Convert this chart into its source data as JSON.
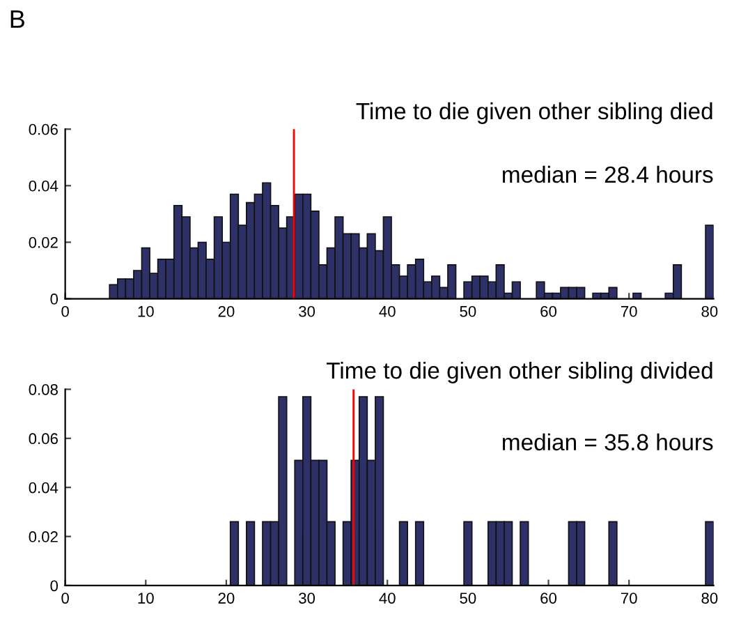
{
  "chart_data": [
    {
      "type": "histogram",
      "title": "Time to die given other sibling died",
      "color": "#2e3168",
      "bins": [
        0.5,
        1.5,
        2.5,
        3.5,
        4.5,
        5.5,
        6.5,
        7.5,
        8.5,
        9.5,
        10.5,
        11.5,
        12.5,
        13.5,
        14.5,
        15.5,
        16.5,
        17.5,
        18.5,
        19.5,
        20.5,
        21.5,
        22.5,
        23.5,
        24.5,
        25.5,
        26.5,
        27.5,
        28.5,
        29.5,
        30.5,
        31.5,
        32.5,
        33.5,
        34.5,
        35.5,
        36.5,
        37.5,
        38.5,
        39.5,
        40.5,
        41.5,
        42.5,
        43.5,
        44.5,
        45.5,
        46.5,
        47.5,
        48.5,
        49.5,
        50.5,
        51.5,
        52.5,
        53.5,
        54.5,
        55.5,
        56.5,
        57.5,
        58.5,
        59.5,
        60.5,
        61.5,
        62.5,
        63.5,
        64.5,
        65.5,
        66.5,
        67.5,
        68.5,
        69.5,
        70.5,
        71.5,
        72.5,
        73.5,
        74.5,
        75.5,
        76.5,
        77.5,
        78.5,
        79.5,
        80.5
      ],
      "values": [
        0,
        0,
        0,
        0,
        0,
        0.005,
        0.007,
        0.007,
        0.01,
        0.018,
        0.009,
        0.014,
        0.014,
        0.033,
        0.029,
        0.018,
        0.02,
        0.014,
        0.029,
        0.02,
        0.037,
        0.026,
        0.034,
        0.037,
        0.041,
        0.033,
        0.025,
        0.029,
        0.037,
        0.037,
        0.031,
        0.012,
        0.018,
        0.029,
        0.023,
        0.023,
        0.018,
        0.023,
        0.017,
        0.029,
        0.012,
        0.008,
        0.012,
        0.014,
        0.006,
        0.008,
        0.004,
        0.012,
        0,
        0.006,
        0.008,
        0.008,
        0.006,
        0.012,
        0.002,
        0.006,
        0,
        0,
        0.006,
        0.002,
        0.002,
        0.004,
        0.004,
        0.004,
        0,
        0.002,
        0.002,
        0.004,
        0,
        0,
        0.002,
        0,
        0,
        0,
        0.002,
        0.012,
        0,
        0,
        0,
        0.026
      ],
      "xlim": [
        0,
        80.5
      ],
      "xticks": [
        0,
        10,
        20,
        30,
        40,
        50,
        60,
        70,
        80
      ],
      "ylim": [
        0,
        0.06
      ],
      "yticks": [
        0,
        0.02,
        0.04,
        0.06
      ],
      "ref_lines": [
        {
          "axis": "x",
          "value": 28.4,
          "color": "#ff0000"
        }
      ],
      "annotations": [
        "B",
        "median = 28.4 hours"
      ],
      "grid": false,
      "legend": false
    },
    {
      "type": "histogram",
      "title": "Time to die given other sibling divided",
      "color": "#2e3168",
      "bins": [
        0.5,
        1.5,
        2.5,
        3.5,
        4.5,
        5.5,
        6.5,
        7.5,
        8.5,
        9.5,
        10.5,
        11.5,
        12.5,
        13.5,
        14.5,
        15.5,
        16.5,
        17.5,
        18.5,
        19.5,
        20.5,
        21.5,
        22.5,
        23.5,
        24.5,
        25.5,
        26.5,
        27.5,
        28.5,
        29.5,
        30.5,
        31.5,
        32.5,
        33.5,
        34.5,
        35.5,
        36.5,
        37.5,
        38.5,
        39.5,
        40.5,
        41.5,
        42.5,
        43.5,
        44.5,
        45.5,
        46.5,
        47.5,
        48.5,
        49.5,
        50.5,
        51.5,
        52.5,
        53.5,
        54.5,
        55.5,
        56.5,
        57.5,
        58.5,
        59.5,
        60.5,
        61.5,
        62.5,
        63.5,
        64.5,
        65.5,
        66.5,
        67.5,
        68.5,
        69.5,
        70.5,
        71.5,
        72.5,
        73.5,
        74.5,
        75.5,
        76.5,
        77.5,
        78.5,
        79.5,
        80.5
      ],
      "values": [
        0,
        0,
        0,
        0,
        0,
        0,
        0,
        0,
        0,
        0,
        0,
        0,
        0,
        0,
        0,
        0,
        0,
        0,
        0,
        0,
        0.026,
        0,
        0.026,
        0,
        0.026,
        0.026,
        0.077,
        0,
        0.051,
        0.077,
        0.051,
        0.051,
        0.026,
        0,
        0.026,
        0.051,
        0.077,
        0.051,
        0.077,
        0,
        0,
        0.026,
        0,
        0.026,
        0,
        0,
        0,
        0,
        0,
        0.026,
        0,
        0,
        0.026,
        0.026,
        0.026,
        0,
        0.026,
        0,
        0,
        0,
        0,
        0,
        0.026,
        0.026,
        0,
        0,
        0,
        0.026,
        0,
        0,
        0,
        0,
        0,
        0,
        0,
        0,
        0,
        0,
        0,
        0.026
      ],
      "xlim": [
        0,
        80.5
      ],
      "xticks": [
        0,
        10,
        20,
        30,
        40,
        50,
        60,
        70,
        80
      ],
      "ylim": [
        0,
        0.08
      ],
      "yticks": [
        0,
        0.02,
        0.04,
        0.06,
        0.08
      ],
      "ref_lines": [
        {
          "axis": "x",
          "value": 35.8,
          "color": "#ff0000"
        }
      ],
      "annotations": [
        "median = 35.8 hours"
      ],
      "grid": false,
      "legend": false
    }
  ]
}
